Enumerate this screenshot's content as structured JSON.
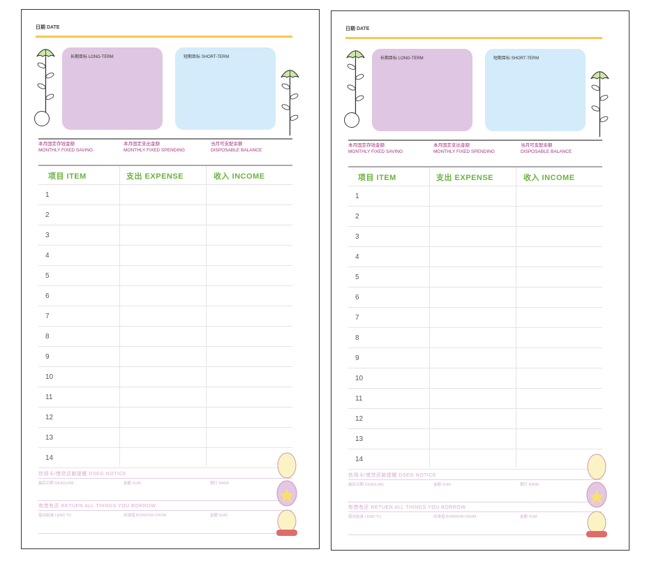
{
  "pages": [
    {
      "id": "left"
    },
    {
      "id": "right"
    }
  ],
  "sheet": {
    "date_label": "日期 DATE",
    "long_term": "长期目标 LONG-TERM",
    "short_term": "短期目标 SHORT-TERM",
    "summary": [
      {
        "cn": "本月固定存钱金额",
        "en": "MONTHLY FIXED SAVING"
      },
      {
        "cn": "本月固定支出金额",
        "en": "MONTHLY FIXED SPENDING"
      },
      {
        "cn": "当月可支配余额",
        "en": "DISPOSABLE BALANCE"
      }
    ],
    "columns": [
      "项目 ITEM",
      "支出 EXPENSE",
      "收入 INCOME"
    ],
    "rows": [
      "1",
      "2",
      "3",
      "4",
      "5",
      "6",
      "7",
      "8",
      "9",
      "10",
      "11",
      "12",
      "13",
      "14"
    ],
    "notice_title": "信用卡/借贷还款提醒 DSEG NOTICE",
    "notice_cols": [
      "最后日期 DEADLINE",
      "金额 SUM",
      "银行 BANK"
    ],
    "borrow_title": "有借有还 RETUEN ALL THINGS YOU BORROW",
    "borrow_cols": [
      "借出给谁 LEND TO",
      "向谁借 BORROW FROM",
      "金额 SUM"
    ]
  },
  "colors": {
    "long_term_box": "#dfc6e2",
    "short_term_box": "#d3ebfa",
    "accent_line": "#f7c74f",
    "header_text": "#6ab33e",
    "label_text": "#a3317b"
  }
}
